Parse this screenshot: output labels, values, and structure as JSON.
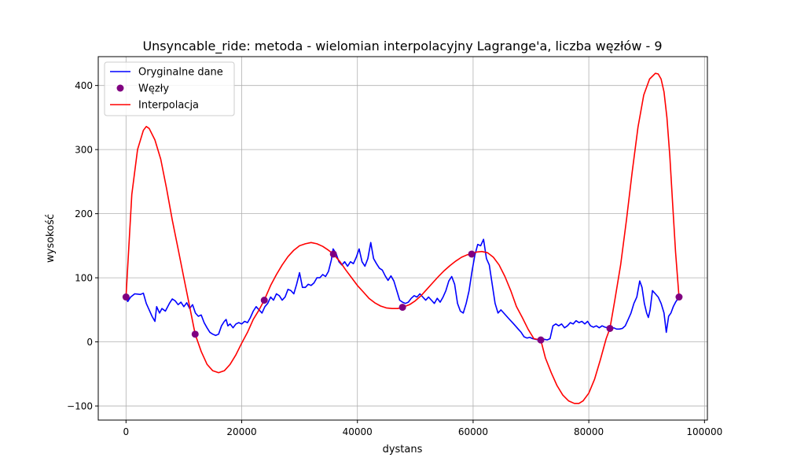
{
  "chart_data": {
    "type": "line",
    "title": "Unsyncable_ride: metoda - wielomian interpolacyjny Lagrange'a, liczba węzłów - 9",
    "xlabel": "dystans",
    "ylabel": "wysokość",
    "xlim": [
      -4800,
      100500
    ],
    "ylim": [
      -122,
      445
    ],
    "grid": true,
    "legend_position": "top-left",
    "x_ticks": [
      {
        "value": 0,
        "label": "0"
      },
      {
        "value": 20000,
        "label": "20000"
      },
      {
        "value": 40000,
        "label": "40000"
      },
      {
        "value": 60000,
        "label": "60000"
      },
      {
        "value": 80000,
        "label": "80000"
      },
      {
        "value": 100000,
        "label": "100000"
      }
    ],
    "y_ticks": [
      {
        "value": -100,
        "label": "−100"
      },
      {
        "value": 0,
        "label": "0"
      },
      {
        "value": 100,
        "label": "100"
      },
      {
        "value": 200,
        "label": "200"
      },
      {
        "value": 300,
        "label": "300"
      },
      {
        "value": 400,
        "label": "400"
      }
    ],
    "series": [
      {
        "name": "Oryginalne dane",
        "kind": "line",
        "color": "#0000ff",
        "points": [
          [
            0,
            70
          ],
          [
            300,
            63
          ],
          [
            800,
            70
          ],
          [
            1500,
            75
          ],
          [
            2500,
            74
          ],
          [
            3000,
            76
          ],
          [
            3500,
            60
          ],
          [
            4000,
            50
          ],
          [
            4500,
            40
          ],
          [
            5000,
            32
          ],
          [
            5300,
            55
          ],
          [
            5800,
            45
          ],
          [
            6200,
            52
          ],
          [
            6800,
            48
          ],
          [
            7500,
            60
          ],
          [
            8000,
            67
          ],
          [
            8500,
            64
          ],
          [
            9000,
            58
          ],
          [
            9500,
            62
          ],
          [
            10000,
            55
          ],
          [
            10500,
            61
          ],
          [
            11000,
            52
          ],
          [
            11500,
            58
          ],
          [
            12000,
            45
          ],
          [
            12500,
            40
          ],
          [
            13000,
            42
          ],
          [
            13500,
            30
          ],
          [
            14000,
            22
          ],
          [
            14500,
            15
          ],
          [
            15000,
            12
          ],
          [
            15500,
            10
          ],
          [
            16000,
            12
          ],
          [
            16500,
            25
          ],
          [
            17000,
            32
          ],
          [
            17300,
            35
          ],
          [
            17600,
            25
          ],
          [
            18000,
            28
          ],
          [
            18500,
            22
          ],
          [
            19000,
            28
          ],
          [
            19500,
            30
          ],
          [
            20000,
            28
          ],
          [
            20500,
            32
          ],
          [
            21000,
            30
          ],
          [
            21500,
            38
          ],
          [
            22000,
            48
          ],
          [
            22500,
            55
          ],
          [
            23000,
            50
          ],
          [
            23500,
            45
          ],
          [
            24000,
            55
          ],
          [
            24500,
            60
          ],
          [
            25000,
            70
          ],
          [
            25500,
            65
          ],
          [
            26000,
            75
          ],
          [
            26500,
            72
          ],
          [
            27000,
            65
          ],
          [
            27500,
            70
          ],
          [
            28000,
            82
          ],
          [
            28500,
            80
          ],
          [
            29000,
            75
          ],
          [
            29500,
            90
          ],
          [
            30000,
            108
          ],
          [
            30500,
            85
          ],
          [
            31000,
            85
          ],
          [
            31500,
            90
          ],
          [
            32000,
            88
          ],
          [
            32500,
            92
          ],
          [
            33000,
            100
          ],
          [
            33500,
            100
          ],
          [
            34000,
            105
          ],
          [
            34500,
            102
          ],
          [
            35000,
            110
          ],
          [
            35500,
            128
          ],
          [
            35800,
            145
          ],
          [
            36300,
            138
          ],
          [
            36800,
            125
          ],
          [
            37300,
            120
          ],
          [
            37800,
            125
          ],
          [
            38300,
            118
          ],
          [
            38800,
            125
          ],
          [
            39300,
            122
          ],
          [
            39800,
            132
          ],
          [
            40300,
            145
          ],
          [
            40800,
            125
          ],
          [
            41300,
            118
          ],
          [
            41800,
            130
          ],
          [
            42300,
            155
          ],
          [
            42800,
            130
          ],
          [
            43300,
            122
          ],
          [
            43800,
            115
          ],
          [
            44300,
            112
          ],
          [
            44800,
            103
          ],
          [
            45300,
            96
          ],
          [
            45800,
            103
          ],
          [
            46300,
            95
          ],
          [
            46800,
            80
          ],
          [
            47300,
            65
          ],
          [
            47800,
            62
          ],
          [
            48300,
            60
          ],
          [
            48800,
            62
          ],
          [
            49300,
            68
          ],
          [
            49800,
            72
          ],
          [
            50300,
            70
          ],
          [
            50800,
            75
          ],
          [
            51300,
            70
          ],
          [
            51800,
            65
          ],
          [
            52300,
            70
          ],
          [
            52800,
            65
          ],
          [
            53300,
            60
          ],
          [
            53800,
            68
          ],
          [
            54300,
            62
          ],
          [
            54800,
            70
          ],
          [
            55300,
            80
          ],
          [
            55800,
            95
          ],
          [
            56300,
            102
          ],
          [
            56800,
            90
          ],
          [
            57300,
            60
          ],
          [
            57800,
            48
          ],
          [
            58300,
            45
          ],
          [
            58800,
            60
          ],
          [
            59300,
            80
          ],
          [
            59800,
            110
          ],
          [
            60300,
            135
          ],
          [
            60800,
            152
          ],
          [
            61300,
            150
          ],
          [
            61800,
            160
          ],
          [
            62300,
            130
          ],
          [
            62800,
            120
          ],
          [
            63300,
            90
          ],
          [
            63800,
            60
          ],
          [
            64300,
            45
          ],
          [
            64800,
            50
          ],
          [
            65300,
            45
          ],
          [
            65800,
            40
          ],
          [
            66300,
            35
          ],
          [
            66800,
            30
          ],
          [
            67300,
            25
          ],
          [
            67800,
            20
          ],
          [
            68300,
            15
          ],
          [
            68800,
            8
          ],
          [
            69300,
            6
          ],
          [
            69800,
            7
          ],
          [
            70300,
            5
          ],
          [
            70800,
            4
          ],
          [
            71300,
            3
          ],
          [
            71800,
            5
          ],
          [
            72300,
            4
          ],
          [
            72800,
            3
          ],
          [
            73300,
            5
          ],
          [
            73800,
            25
          ],
          [
            74300,
            28
          ],
          [
            74800,
            25
          ],
          [
            75300,
            28
          ],
          [
            75800,
            22
          ],
          [
            76300,
            25
          ],
          [
            76800,
            30
          ],
          [
            77300,
            28
          ],
          [
            77800,
            33
          ],
          [
            78300,
            30
          ],
          [
            78800,
            32
          ],
          [
            79300,
            28
          ],
          [
            79800,
            32
          ],
          [
            80300,
            25
          ],
          [
            80800,
            23
          ],
          [
            81300,
            25
          ],
          [
            81800,
            22
          ],
          [
            82300,
            25
          ],
          [
            82800,
            23
          ],
          [
            83300,
            22
          ],
          [
            83800,
            20
          ],
          [
            84300,
            22
          ],
          [
            84800,
            20
          ],
          [
            85300,
            20
          ],
          [
            85800,
            21
          ],
          [
            86300,
            25
          ],
          [
            86800,
            35
          ],
          [
            87300,
            45
          ],
          [
            87800,
            60
          ],
          [
            88300,
            70
          ],
          [
            88800,
            95
          ],
          [
            89200,
            85
          ],
          [
            89600,
            60
          ],
          [
            90000,
            45
          ],
          [
            90300,
            38
          ],
          [
            90600,
            50
          ],
          [
            91000,
            80
          ],
          [
            91500,
            75
          ],
          [
            92000,
            70
          ],
          [
            92500,
            60
          ],
          [
            93000,
            45
          ],
          [
            93400,
            15
          ],
          [
            93800,
            40
          ],
          [
            94200,
            45
          ],
          [
            94600,
            55
          ],
          [
            95000,
            62
          ],
          [
            95600,
            70
          ]
        ]
      },
      {
        "name": "Węzły",
        "kind": "scatter",
        "color": "#800080",
        "points": [
          [
            0,
            70
          ],
          [
            11950,
            12
          ],
          [
            23900,
            65
          ],
          [
            35850,
            137
          ],
          [
            47800,
            54
          ],
          [
            59750,
            137
          ],
          [
            71700,
            3
          ],
          [
            83650,
            21
          ],
          [
            95600,
            70
          ]
        ]
      },
      {
        "name": "Interpolacja",
        "kind": "line",
        "color": "#ff0000",
        "points": [
          [
            0,
            70
          ],
          [
            1000,
            230
          ],
          [
            2000,
            300
          ],
          [
            3000,
            330
          ],
          [
            3500,
            336
          ],
          [
            4000,
            333
          ],
          [
            5000,
            315
          ],
          [
            6000,
            285
          ],
          [
            7000,
            240
          ],
          [
            8000,
            190
          ],
          [
            9000,
            145
          ],
          [
            10000,
            100
          ],
          [
            11000,
            55
          ],
          [
            11950,
            12
          ],
          [
            13000,
            -15
          ],
          [
            14000,
            -35
          ],
          [
            15000,
            -45
          ],
          [
            16000,
            -48
          ],
          [
            17000,
            -45
          ],
          [
            18000,
            -35
          ],
          [
            19000,
            -20
          ],
          [
            20000,
            -2
          ],
          [
            21000,
            15
          ],
          [
            22000,
            35
          ],
          [
            23000,
            50
          ],
          [
            23900,
            65
          ],
          [
            25000,
            88
          ],
          [
            26000,
            105
          ],
          [
            27000,
            120
          ],
          [
            28000,
            133
          ],
          [
            29000,
            143
          ],
          [
            30000,
            150
          ],
          [
            31000,
            153
          ],
          [
            32000,
            155
          ],
          [
            33000,
            153
          ],
          [
            34000,
            149
          ],
          [
            35000,
            143
          ],
          [
            35850,
            137
          ],
          [
            37000,
            125
          ],
          [
            38000,
            112
          ],
          [
            39000,
            100
          ],
          [
            40000,
            88
          ],
          [
            41000,
            78
          ],
          [
            42000,
            68
          ],
          [
            43000,
            61
          ],
          [
            44000,
            56
          ],
          [
            45000,
            53
          ],
          [
            46000,
            52
          ],
          [
            47000,
            52
          ],
          [
            47800,
            54
          ],
          [
            49000,
            58
          ],
          [
            50000,
            64
          ],
          [
            51000,
            72
          ],
          [
            52000,
            82
          ],
          [
            53000,
            92
          ],
          [
            54000,
            102
          ],
          [
            55000,
            111
          ],
          [
            56000,
            119
          ],
          [
            57000,
            126
          ],
          [
            58000,
            132
          ],
          [
            59000,
            136
          ],
          [
            59750,
            137
          ],
          [
            60500,
            140
          ],
          [
            61500,
            141
          ],
          [
            62500,
            139
          ],
          [
            63500,
            132
          ],
          [
            64500,
            120
          ],
          [
            65500,
            102
          ],
          [
            66500,
            80
          ],
          [
            67500,
            55
          ],
          [
            68500,
            38
          ],
          [
            69500,
            20
          ],
          [
            70500,
            5
          ],
          [
            71700,
            3
          ],
          [
            72500,
            -25
          ],
          [
            73500,
            -48
          ],
          [
            74500,
            -68
          ],
          [
            75500,
            -83
          ],
          [
            76500,
            -92
          ],
          [
            77500,
            -96
          ],
          [
            78300,
            -96
          ],
          [
            79000,
            -92
          ],
          [
            80000,
            -80
          ],
          [
            81000,
            -58
          ],
          [
            82000,
            -28
          ],
          [
            83000,
            5
          ],
          [
            83650,
            21
          ],
          [
            84500,
            65
          ],
          [
            85500,
            120
          ],
          [
            86500,
            190
          ],
          [
            87500,
            265
          ],
          [
            88500,
            335
          ],
          [
            89500,
            385
          ],
          [
            90500,
            410
          ],
          [
            91500,
            419
          ],
          [
            92000,
            418
          ],
          [
            92500,
            410
          ],
          [
            93000,
            390
          ],
          [
            93500,
            350
          ],
          [
            94000,
            290
          ],
          [
            94500,
            215
          ],
          [
            95000,
            140
          ],
          [
            95600,
            70
          ]
        ]
      }
    ]
  }
}
